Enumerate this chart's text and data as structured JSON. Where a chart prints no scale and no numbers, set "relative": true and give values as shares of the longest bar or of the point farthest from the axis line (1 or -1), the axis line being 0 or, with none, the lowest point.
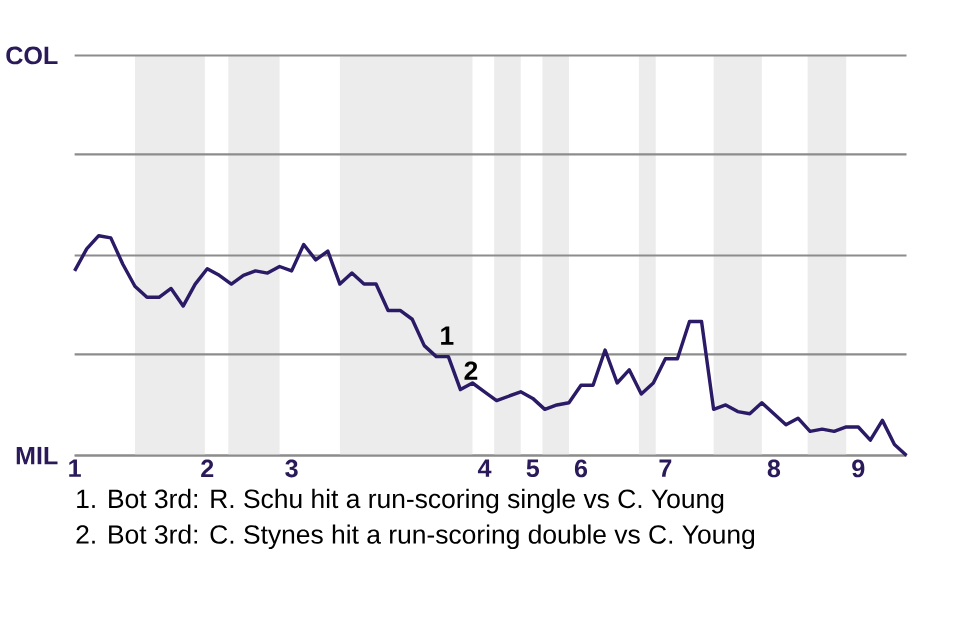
{
  "chart_data": {
    "type": "line",
    "color": "#2b1a66",
    "relative": true,
    "categories": [
      "1",
      null,
      null,
      null,
      null,
      null,
      null,
      null,
      null,
      null,
      null,
      "2",
      null,
      null,
      null,
      null,
      null,
      null,
      "3",
      null,
      null,
      null,
      null,
      null,
      null,
      null,
      null,
      null,
      null,
      null,
      null,
      null,
      null,
      null,
      "4",
      null,
      null,
      null,
      "5",
      null,
      null,
      null,
      "6",
      null,
      null,
      null,
      null,
      null,
      null,
      "7",
      null,
      null,
      null,
      null,
      null,
      null,
      null,
      null,
      "8",
      null,
      null,
      null,
      null,
      null,
      null,
      "9",
      null,
      null,
      null,
      null
    ],
    "values": [
      0.84,
      0.94,
      1,
      0.99,
      0.87,
      0.77,
      0.72,
      0.72,
      0.76,
      0.68,
      0.78,
      0.85,
      0.82,
      0.78,
      0.82,
      0.84,
      0.83,
      0.86,
      0.84,
      0.96,
      0.89,
      0.93,
      0.78,
      0.83,
      0.78,
      0.78,
      0.66,
      0.66,
      0.62,
      0.5,
      0.45,
      0.45,
      0.3,
      0.33,
      0.29,
      0.25,
      0.27,
      0.29,
      0.26,
      0.21,
      0.23,
      0.24,
      0.32,
      0.32,
      0.48,
      0.33,
      0.39,
      0.28,
      0.33,
      0.44,
      0.44,
      0.61,
      0.61,
      0.21,
      0.23,
      0.2,
      0.19,
      0.24,
      0.19,
      0.14,
      0.17,
      0.11,
      0.12,
      0.11,
      0.13,
      0.13,
      0.07,
      0.16,
      0.05,
      0
    ],
    "ref_lines": [
      {
        "axis": "y",
        "value": 0,
        "label": "MIL"
      },
      {
        "axis": "y",
        "value": 0.46
      },
      {
        "axis": "y",
        "value": 0.91
      },
      {
        "axis": "y",
        "value": 1.37
      },
      {
        "axis": "y",
        "value": 1.82,
        "label": "COL"
      }
    ],
    "annotations": [
      {
        "text": "1",
        "y": 0.49
      },
      {
        "text": "2",
        "y": 0.33
      },
      "1. Bot 3rd: R. Schu hit a run-scoring single vs C. Young",
      "2. Bot 3rd: C. Stynes hit a run-scoring double vs C. Young"
    ]
  }
}
